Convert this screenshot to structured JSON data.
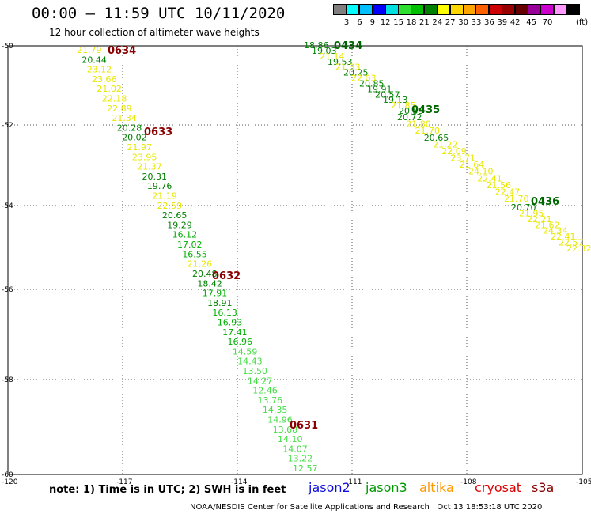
{
  "header": {
    "title": "00:00 – 11:59 UTC 10/11/2020",
    "subtitle": "12 hour collection of altimeter wave heights"
  },
  "colorbar": {
    "units": "(ft)",
    "colors": [
      "#7f7f7f",
      "#00ffff",
      "#00bfff",
      "#0000ff",
      "#00e0e0",
      "#2fdf2f",
      "#00bf00",
      "#008000",
      "#ffff00",
      "#ffd700",
      "#ffa500",
      "#ff6000",
      "#cc0000",
      "#990000",
      "#660000",
      "#990099",
      "#cc00cc",
      "#ff99ff",
      "#000000"
    ],
    "labels": [
      "3",
      "6",
      "9",
      "12",
      "15",
      "18",
      "21",
      "24",
      "27",
      "30",
      "33",
      "36",
      "39",
      "42",
      "45",
      "70"
    ]
  },
  "axes": {
    "lat_labels": [
      "-50",
      "-52",
      "-54",
      "-56",
      "-58",
      "-60"
    ],
    "lon_labels": [
      "-120",
      "-117",
      "-114",
      "-111",
      "-108",
      "-105"
    ]
  },
  "tracks": [
    {
      "labels": [
        {
          "text": "0634"
        },
        {
          "text": "0633"
        },
        {
          "text": "0632"
        },
        {
          "text": "0631"
        }
      ],
      "values": [
        "21.79",
        "20.44",
        "23.12",
        "23.66",
        "21.02",
        "22.18",
        "22.89",
        "21.34",
        "20.28",
        "20.02",
        "21.97",
        "23.95",
        "21.37",
        "20.31",
        "19.76",
        "21.19",
        "22.59",
        "20.65",
        "19.29",
        "16.12",
        "17.02",
        "16.55",
        "21.26",
        "20.48",
        "18.42",
        "17.91",
        "18.91",
        "16.13",
        "16.93",
        "17.41",
        "16.96",
        "14.59",
        "14.43",
        "13.50",
        "14.27",
        "12.46",
        "13.76",
        "14.35",
        "14.96",
        "13.68",
        "14.10",
        "14.07",
        "13.22",
        "12.57"
      ]
    },
    {
      "labels": [
        {
          "text": "0434"
        },
        {
          "text": "0435"
        },
        {
          "text": "0436"
        }
      ],
      "values": [
        "18.86",
        "19.03",
        "21.14",
        "19.53",
        "21.33",
        "20.25",
        "22.03",
        "20.85",
        "19.91",
        "20.57",
        "19.13",
        "21.85",
        "20.55",
        "20.72",
        "21.80",
        "21.70",
        "20.65",
        "21.22",
        "22.09",
        "23.71",
        "21.64",
        "24.10",
        "22.41",
        "21.56",
        "22.47",
        "21.70",
        "20.70",
        "21.95",
        "22.21",
        "21.62",
        "24.34",
        "22.41",
        "22.57",
        "22.32"
      ]
    }
  ],
  "note": "note:  1) Time is in UTC; 2) SWH is in feet",
  "satellites": [
    {
      "name": "jason2",
      "color": "#1010dd"
    },
    {
      "name": "jason3",
      "color": "#009900"
    },
    {
      "name": "altika",
      "color": "#ff9900"
    },
    {
      "name": "cryosat",
      "color": "#dd0000"
    },
    {
      "name": "s3a",
      "color": "#880000"
    }
  ],
  "footer": {
    "credit": "NOAA/NESDIS Center for Satellite Applications and Research",
    "timestamp": "Oct 13 18:53:18 UTC 2020"
  }
}
